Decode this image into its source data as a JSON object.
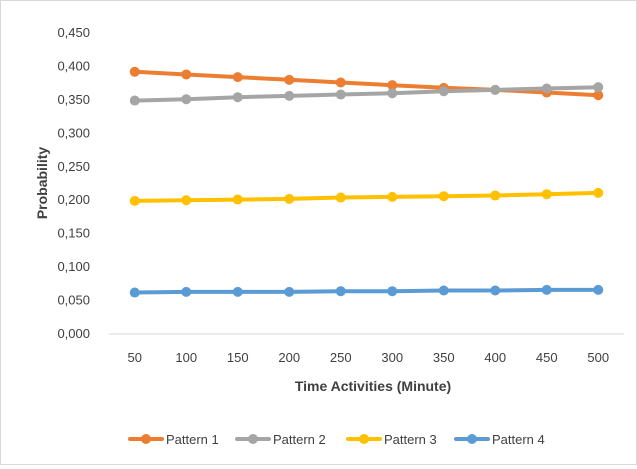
{
  "chart_data": {
    "type": "line",
    "title": "",
    "xlabel": "Time Activities (Minute)",
    "ylabel": "Probability",
    "categories": [
      "50",
      "100",
      "150",
      "200",
      "250",
      "300",
      "350",
      "400",
      "450",
      "500"
    ],
    "ylim": [
      0,
      0.45
    ],
    "yticks": [
      "0,000",
      "0,050",
      "0,100",
      "0,150",
      "0,200",
      "0,250",
      "0,300",
      "0,350",
      "0,400",
      "0,450"
    ],
    "yticks_values": [
      0,
      0.05,
      0.1,
      0.15,
      0.2,
      0.25,
      0.3,
      0.35,
      0.4,
      0.45
    ],
    "grid": false,
    "legend_position": "bottom",
    "series": [
      {
        "name": "Pattern 1",
        "color": "#ED7D31",
        "values": [
          0.392,
          0.388,
          0.384,
          0.38,
          0.376,
          0.372,
          0.368,
          0.365,
          0.361,
          0.357
        ]
      },
      {
        "name": "Pattern 2",
        "color": "#A5A5A5",
        "values": [
          0.349,
          0.351,
          0.354,
          0.356,
          0.358,
          0.36,
          0.363,
          0.365,
          0.367,
          0.369
        ]
      },
      {
        "name": "Pattern 3",
        "color": "#FFC000",
        "values": [
          0.199,
          0.2,
          0.201,
          0.202,
          0.204,
          0.205,
          0.206,
          0.207,
          0.209,
          0.211
        ]
      },
      {
        "name": "Pattern 4",
        "color": "#5B9BD5",
        "values": [
          0.062,
          0.063,
          0.063,
          0.063,
          0.064,
          0.064,
          0.065,
          0.065,
          0.066,
          0.066
        ]
      }
    ]
  }
}
